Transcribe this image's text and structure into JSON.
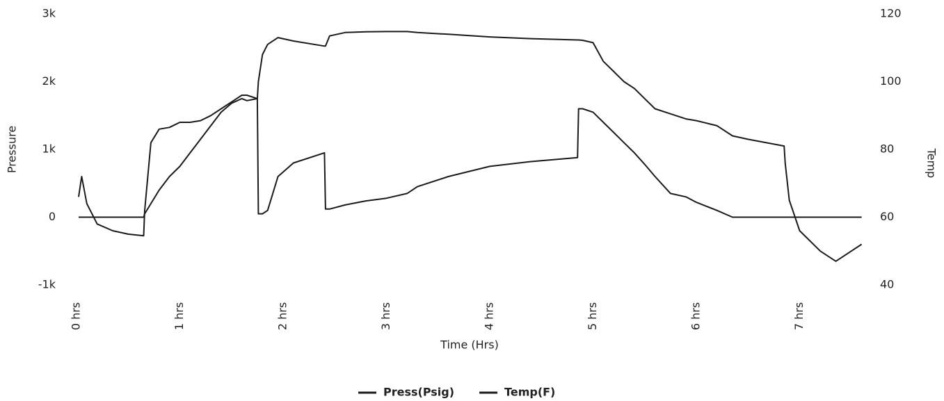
{
  "chart_data": {
    "type": "line",
    "x_label": "Time (Hrs)",
    "y_label": "Pressure",
    "y2_label": "Temp",
    "x": [
      0.02,
      0.05,
      0.1,
      0.2,
      0.35,
      0.5,
      0.65,
      0.66,
      0.72,
      0.8,
      0.9,
      1.0,
      1.1,
      1.2,
      1.3,
      1.4,
      1.5,
      1.6,
      1.65,
      1.75,
      1.76,
      1.8,
      1.85,
      1.95,
      2.1,
      2.4,
      2.41,
      2.45,
      2.6,
      2.8,
      3.0,
      3.2,
      3.3,
      3.6,
      4.0,
      4.4,
      4.85,
      4.86,
      4.9,
      5.0,
      5.1,
      5.2,
      5.3,
      5.4,
      5.5,
      5.6,
      5.75,
      5.9,
      6.0,
      6.2,
      6.35,
      6.5,
      6.85,
      6.86,
      6.9,
      7.0,
      7.2,
      7.35,
      7.5,
      7.6
    ],
    "series": [
      {
        "name": "Press(Psig)",
        "color": "#1a1a1a",
        "axis": "y",
        "values": [
          0,
          0,
          0,
          0,
          0,
          0,
          0,
          50,
          200,
          400,
          600,
          750,
          950,
          1150,
          1350,
          1550,
          1680,
          1750,
          1720,
          1750,
          50,
          50,
          100,
          600,
          800,
          950,
          120,
          120,
          180,
          240,
          280,
          350,
          450,
          600,
          750,
          820,
          880,
          1600,
          1600,
          1550,
          1400,
          1250,
          1100,
          950,
          780,
          600,
          350,
          300,
          220,
          100,
          0,
          0,
          0,
          0,
          0,
          0,
          0,
          0,
          0,
          0
        ]
      },
      {
        "name": "Temp(F)",
        "color": "#1a1a1a",
        "axis": "y2",
        "values": [
          66,
          72,
          64,
          58,
          56,
          55,
          54.5,
          62,
          82,
          86,
          86.5,
          88,
          88,
          88.5,
          90,
          92,
          94,
          96,
          96,
          95,
          100,
          108,
          111,
          113,
          112,
          110.5,
          110.5,
          113.5,
          114.5,
          114.7,
          114.8,
          114.8,
          114.5,
          114,
          113.2,
          112.7,
          112.3,
          112.3,
          112.2,
          111.5,
          106,
          103,
          100,
          98,
          95,
          92,
          90.5,
          89,
          88.5,
          87,
          84,
          83,
          81,
          76,
          65,
          56,
          50,
          47,
          50,
          52
        ]
      }
    ],
    "xlim": [
      0,
      7.65
    ],
    "xticks": [
      {
        "value": 0,
        "label": "0 hrs"
      },
      {
        "value": 1,
        "label": "1 hrs"
      },
      {
        "value": 2,
        "label": "2 hrs"
      },
      {
        "value": 3,
        "label": "3 hrs"
      },
      {
        "value": 4,
        "label": "4 hrs"
      },
      {
        "value": 5,
        "label": "5 hrs"
      },
      {
        "value": 6,
        "label": "6 hrs"
      },
      {
        "value": 7,
        "label": "7 hrs"
      }
    ],
    "ylim": [
      -1000,
      3000
    ],
    "yticks": [
      {
        "value": -1000,
        "label": "-1k"
      },
      0,
      {
        "value": 1000,
        "label": "1k"
      },
      {
        "value": 2000,
        "label": "2k"
      },
      {
        "value": 3000,
        "label": "3k"
      }
    ],
    "y2lim": [
      40,
      120
    ],
    "y2ticks": [
      40,
      60,
      80,
      100,
      120
    ],
    "legend": "bottom",
    "grid": false
  }
}
